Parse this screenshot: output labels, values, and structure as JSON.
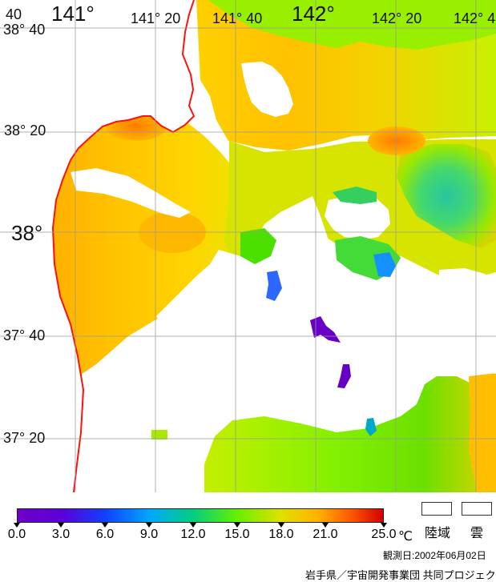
{
  "map": {
    "lon_labels": {
      "lon_140": "40",
      "lon_141": "141°",
      "lon_141_20": "141° 20",
      "lon_141_40": "141° 40",
      "lon_142": "142°",
      "lon_142_20": "142° 20",
      "lon_142_4": "142° 4"
    },
    "lat_labels": {
      "lat_38_40": "38° 40",
      "lat_38_20": "38° 20",
      "lat_38": "38°",
      "lat_37_40": "37° 40",
      "lat_37_20": "37° 20"
    }
  },
  "legend": {
    "ticks": [
      "0.0",
      "3.0",
      "6.0",
      "9.0",
      "12.0",
      "15.0",
      "18.0",
      "21.0",
      "25.0"
    ],
    "unit": "℃",
    "land_label": "陸域",
    "cloud_label": "雲",
    "colors": {
      "land_box": "#ffffff",
      "cloud_box": "#ffffff"
    }
  },
  "footer": {
    "date": "観測日:2002年06月02日",
    "credit": "岩手県／宇宙開発事業団 共同プロジェクト"
  }
}
